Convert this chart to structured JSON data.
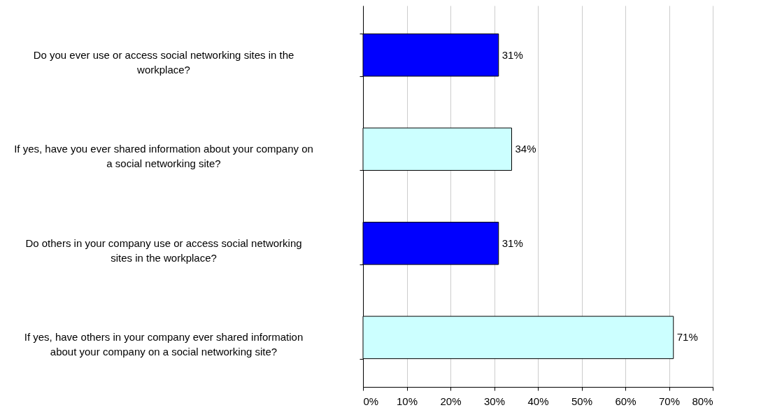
{
  "chart_data": {
    "type": "bar",
    "orientation": "horizontal",
    "categories": [
      "Do you ever use or access social networking sites in the workplace?",
      "If yes, have you ever shared information about your company on a social networking site?",
      "Do others in your company use or access social networking sites in the workplace?",
      "If yes, have others in your company ever shared information about your company on a social networking site?"
    ],
    "values": [
      31,
      34,
      31,
      71
    ],
    "colors": [
      "#0000ff",
      "#ccffff",
      "#0000ff",
      "#ccffff"
    ],
    "value_labels": [
      "31%",
      "34%",
      "31%",
      "71%"
    ],
    "xlim": [
      0,
      80
    ],
    "xticks": [
      {
        "value": 0,
        "label": "0%"
      },
      {
        "value": 10,
        "label": "10%"
      },
      {
        "value": 20,
        "label": "20%"
      },
      {
        "value": 30,
        "label": "30%"
      },
      {
        "value": 40,
        "label": "40%"
      },
      {
        "value": 50,
        "label": "50%"
      },
      {
        "value": 60,
        "label": "60%"
      },
      {
        "value": 70,
        "label": "70%"
      },
      {
        "value": 80,
        "label": "80%"
      }
    ],
    "grid": "x",
    "tick_labels": "x",
    "legend": false
  }
}
